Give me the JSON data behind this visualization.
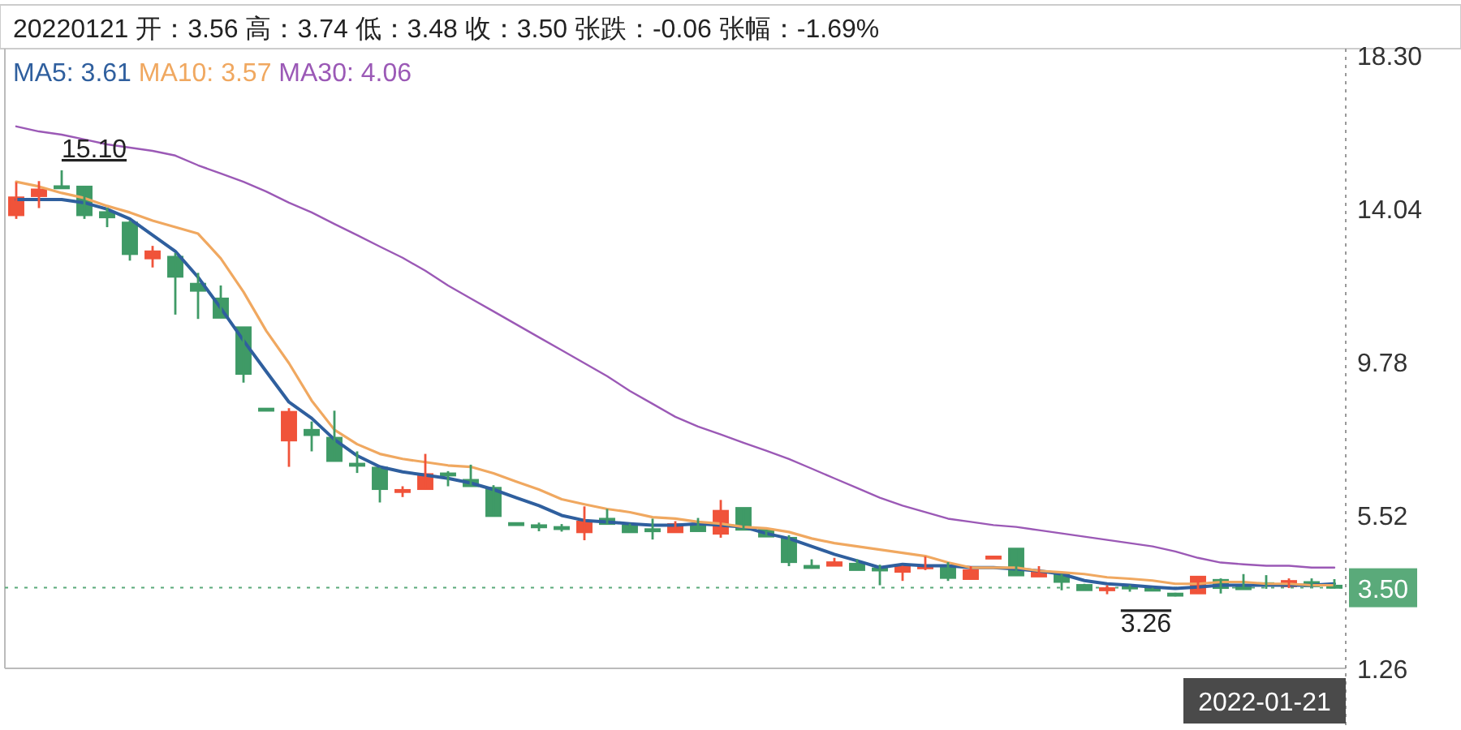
{
  "chart_data": {
    "type": "candlestick",
    "title": "20220121 开：3.56 高：3.74 低：3.48 收：3.50 张跌：-0.06 张幅：-1.69%",
    "categories": [
      null,
      null,
      null,
      null,
      null,
      null,
      null,
      null,
      null,
      null,
      null,
      null,
      null,
      null,
      null,
      null,
      null,
      null,
      null,
      null,
      null,
      null,
      null,
      null,
      null,
      null,
      null,
      null,
      null,
      null,
      null,
      null,
      null,
      null,
      null,
      null,
      null,
      null,
      null,
      null,
      null,
      null,
      null,
      null,
      null,
      null,
      null,
      null,
      null,
      null,
      null,
      null,
      null,
      null,
      null,
      null,
      null,
      null,
      null
    ],
    "ohlc": [
      [
        13.85,
        14.77,
        13.75,
        14.35
      ],
      [
        14.38,
        14.8,
        14.05,
        14.57
      ],
      [
        14.66,
        15.1,
        14.65,
        14.65
      ],
      [
        14.65,
        14.65,
        13.75,
        13.85
      ],
      [
        13.94,
        14.06,
        13.52,
        13.79
      ],
      [
        13.65,
        13.7,
        12.59,
        12.77
      ],
      [
        12.65,
        13.0,
        12.4,
        12.85
      ],
      [
        12.7,
        12.8,
        11.09,
        12.14
      ],
      [
        11.95,
        12.25,
        10.97,
        11.75
      ],
      [
        11.54,
        11.9,
        11.0,
        11.0
      ],
      [
        10.74,
        10.74,
        9.2,
        9.44
      ],
      [
        8.48,
        8.48,
        8.47,
        8.47
      ],
      [
        7.59,
        8.49,
        6.86,
        8.39
      ],
      [
        7.89,
        8.12,
        7.29,
        7.74
      ],
      [
        7.67,
        8.42,
        7.02,
        7.02
      ],
      [
        6.95,
        7.29,
        6.69,
        6.9
      ],
      [
        6.84,
        6.84,
        5.87,
        6.24
      ],
      [
        6.18,
        6.32,
        6.02,
        6.22
      ],
      [
        6.24,
        7.22,
        6.24,
        6.66
      ],
      [
        6.68,
        6.74,
        6.32,
        6.66
      ],
      [
        6.5,
        6.92,
        6.32,
        6.32
      ],
      [
        6.28,
        6.35,
        5.49,
        5.49
      ],
      [
        5.3,
        5.31,
        5.27,
        5.29
      ],
      [
        5.24,
        5.31,
        5.07,
        5.22
      ],
      [
        5.19,
        5.27,
        5.06,
        5.18
      ],
      [
        5.04,
        5.76,
        4.82,
        5.34
      ],
      [
        5.42,
        5.69,
        5.27,
        5.27
      ],
      [
        5.23,
        5.28,
        5.04,
        5.04
      ],
      [
        5.13,
        5.42,
        4.84,
        5.08
      ],
      [
        5.04,
        5.35,
        5.04,
        5.27
      ],
      [
        5.22,
        5.44,
        5.07,
        5.07
      ],
      [
        5.0,
        5.94,
        4.89,
        5.64
      ],
      [
        5.72,
        5.72,
        5.11,
        5.11
      ],
      [
        5.11,
        5.11,
        4.92,
        4.92
      ],
      [
        4.89,
        4.96,
        4.1,
        4.21
      ],
      [
        4.11,
        4.29,
        4.03,
        4.1
      ],
      [
        4.11,
        4.33,
        4.11,
        4.21
      ],
      [
        4.17,
        4.29,
        3.99,
        3.99
      ],
      [
        4.04,
        4.14,
        3.57,
        4.03
      ],
      [
        3.94,
        4.11,
        3.69,
        4.11
      ],
      [
        4.07,
        4.37,
        3.99,
        4.1
      ],
      [
        4.1,
        4.21,
        3.69,
        3.77
      ],
      [
        3.74,
        4.1,
        3.74,
        3.99
      ],
      [
        4.36,
        4.37,
        4.36,
        4.37
      ],
      [
        4.59,
        4.59,
        3.84,
        3.84
      ],
      [
        3.81,
        4.1,
        3.81,
        3.94
      ],
      [
        3.88,
        3.88,
        3.43,
        3.66
      ],
      [
        3.58,
        3.61,
        3.43,
        3.43
      ],
      [
        3.44,
        3.57,
        3.32,
        3.49
      ],
      [
        3.54,
        3.57,
        3.39,
        3.52
      ],
      [
        3.48,
        3.5,
        3.41,
        3.46
      ],
      [
        3.34,
        3.36,
        3.26,
        3.32
      ],
      [
        3.34,
        3.83,
        3.34,
        3.81
      ],
      [
        3.72,
        3.76,
        3.34,
        3.49
      ],
      [
        3.52,
        3.88,
        3.5,
        3.5
      ],
      [
        3.63,
        3.85,
        3.47,
        3.59
      ],
      [
        3.54,
        3.76,
        3.49,
        3.69
      ],
      [
        3.66,
        3.76,
        3.54,
        3.54
      ],
      [
        3.56,
        3.74,
        3.48,
        3.5
      ]
    ],
    "colors": [
      "#f0533a",
      "#f0533a",
      "#3f9a66",
      "#3f9a66",
      "#3f9a66",
      "#3f9a66",
      "#f0533a",
      "#3f9a66",
      "#3f9a66",
      "#3f9a66",
      "#3f9a66",
      "#3f9a66",
      "#f0533a",
      "#3f9a66",
      "#3f9a66",
      "#3f9a66",
      "#3f9a66",
      "#f0533a",
      "#f0533a",
      "#3f9a66",
      "#3f9a66",
      "#3f9a66",
      "#3f9a66",
      "#3f9a66",
      "#3f9a66",
      "#f0533a",
      "#3f9a66",
      "#3f9a66",
      "#3f9a66",
      "#f0533a",
      "#3f9a66",
      "#f0533a",
      "#3f9a66",
      "#3f9a66",
      "#3f9a66",
      "#3f9a66",
      "#f0533a",
      "#3f9a66",
      "#3f9a66",
      "#f0533a",
      "#f0533a",
      "#3f9a66",
      "#f0533a",
      "#f0533a",
      "#3f9a66",
      "#f0533a",
      "#3f9a66",
      "#3f9a66",
      "#f0533a",
      "#3f9a66",
      "#3f9a66",
      "#3f9a66",
      "#f0533a",
      "#3f9a66",
      "#3f9a66",
      "#3f9a66",
      "#f0533a",
      "#3f9a66",
      "#3f9a66"
    ],
    "series": [
      {
        "type": "line",
        "name": "MA5: 3.61",
        "color": "#2f5f9e",
        "values": [
          14.29,
          14.29,
          14.29,
          14.2,
          14.02,
          13.75,
          13.3,
          12.85,
          12.13,
          11.27,
          10.37,
          9.51,
          8.66,
          8.21,
          7.62,
          7.17,
          6.86,
          6.72,
          6.63,
          6.54,
          6.41,
          6.23,
          6.0,
          5.78,
          5.51,
          5.37,
          5.33,
          5.28,
          5.24,
          5.24,
          5.28,
          5.24,
          5.19,
          5.01,
          4.87,
          4.65,
          4.43,
          4.25,
          4.06,
          4.15,
          4.11,
          4.11,
          4.06,
          4.06,
          4.02,
          3.97,
          3.88,
          3.7,
          3.61,
          3.57,
          3.52,
          3.48,
          3.52,
          3.57,
          3.57,
          3.57,
          3.57,
          3.57,
          3.61
        ]
      },
      {
        "type": "line",
        "name": "MA10: 3.57",
        "color": "#f0a860",
        "values": [
          14.78,
          14.65,
          14.47,
          14.33,
          14.11,
          13.93,
          13.7,
          13.52,
          13.34,
          12.65,
          11.72,
          10.64,
          9.74,
          8.7,
          7.89,
          7.49,
          7.22,
          7.08,
          6.99,
          6.9,
          6.86,
          6.68,
          6.45,
          6.23,
          5.96,
          5.82,
          5.69,
          5.6,
          5.46,
          5.42,
          5.33,
          5.28,
          5.19,
          5.15,
          5.05,
          4.87,
          4.74,
          4.65,
          4.56,
          4.47,
          4.38,
          4.2,
          4.06,
          4.06,
          4.06,
          3.97,
          3.93,
          3.88,
          3.79,
          3.75,
          3.7,
          3.61,
          3.61,
          3.66,
          3.66,
          3.61,
          3.61,
          3.57,
          3.57
        ]
      },
      {
        "type": "line",
        "name": "MA30: 4.06",
        "color": "#9b59b6",
        "values": [
          16.32,
          16.18,
          16.09,
          15.96,
          15.82,
          15.73,
          15.64,
          15.51,
          15.24,
          15.01,
          14.78,
          14.51,
          14.2,
          13.93,
          13.61,
          13.3,
          12.98,
          12.67,
          12.31,
          11.9,
          11.54,
          11.18,
          10.82,
          10.46,
          10.1,
          9.74,
          9.38,
          8.97,
          8.61,
          8.25,
          7.98,
          7.76,
          7.53,
          7.31,
          7.08,
          6.81,
          6.54,
          6.27,
          6.0,
          5.78,
          5.6,
          5.42,
          5.33,
          5.24,
          5.19,
          5.1,
          5.01,
          4.92,
          4.83,
          4.74,
          4.65,
          4.51,
          4.33,
          4.2,
          4.15,
          4.11,
          4.11,
          4.06,
          4.06
        ]
      }
    ],
    "ylim": [
      1.26,
      18.3
    ],
    "yticks": [
      {
        "value": 18.3,
        "label": "18.30"
      },
      14.04,
      9.78,
      5.52,
      1.26
    ],
    "annotations": [
      "15.10",
      "3.26",
      "2022-01-21"
    ],
    "ref_lines": [
      {
        "axis": "y",
        "value": 3.5,
        "label": "3.50",
        "color": "#5aaa7a",
        "line_style": "dotted"
      }
    ],
    "legend": "top left",
    "tick_labels": "y"
  }
}
